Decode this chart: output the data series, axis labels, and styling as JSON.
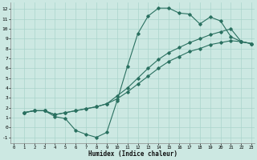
{
  "xlabel": "Humidex (Indice chaleur)",
  "bg_color": "#cce8e2",
  "grid_color": "#aad4cc",
  "line_color": "#2a7060",
  "xlim": [
    -0.3,
    23.3
  ],
  "ylim": [
    -1.6,
    12.7
  ],
  "xticks": [
    0,
    1,
    2,
    3,
    4,
    5,
    6,
    7,
    8,
    9,
    10,
    11,
    12,
    13,
    14,
    15,
    16,
    17,
    18,
    19,
    20,
    21,
    22,
    23
  ],
  "yticks": [
    -1,
    0,
    1,
    2,
    3,
    4,
    5,
    6,
    7,
    8,
    9,
    10,
    11,
    12
  ],
  "line1_x": [
    1,
    2,
    3,
    4,
    5,
    6,
    7,
    8,
    9,
    10,
    11,
    12,
    13,
    14,
    15,
    16,
    17,
    18,
    19,
    20,
    21,
    22,
    23
  ],
  "line1_y": [
    1.5,
    1.7,
    1.7,
    1.1,
    0.9,
    -0.3,
    -0.7,
    -1.0,
    -0.5,
    2.7,
    6.2,
    9.5,
    11.3,
    12.1,
    12.1,
    11.6,
    11.5,
    10.5,
    11.2,
    10.8,
    9.2,
    8.7,
    8.5
  ],
  "line2_x": [
    1,
    2,
    3,
    4,
    5,
    6,
    7,
    8,
    9,
    10,
    11,
    12,
    13,
    14,
    15,
    16,
    17,
    18,
    19,
    20,
    21,
    22,
    23
  ],
  "line2_y": [
    1.5,
    1.7,
    1.7,
    1.3,
    1.5,
    1.7,
    1.9,
    2.1,
    2.4,
    2.9,
    3.6,
    4.4,
    5.2,
    6.0,
    6.7,
    7.2,
    7.7,
    8.0,
    8.4,
    8.6,
    8.8,
    8.7,
    8.5
  ],
  "line3_x": [
    1,
    2,
    3,
    4,
    5,
    6,
    7,
    8,
    9,
    10,
    11,
    12,
    13,
    14,
    15,
    16,
    17,
    18,
    19,
    20,
    21,
    22,
    23
  ],
  "line3_y": [
    1.5,
    1.7,
    1.7,
    1.3,
    1.5,
    1.7,
    1.9,
    2.1,
    2.4,
    3.2,
    4.0,
    5.0,
    6.0,
    6.9,
    7.6,
    8.1,
    8.6,
    9.0,
    9.4,
    9.7,
    10.0,
    8.7,
    8.5
  ]
}
